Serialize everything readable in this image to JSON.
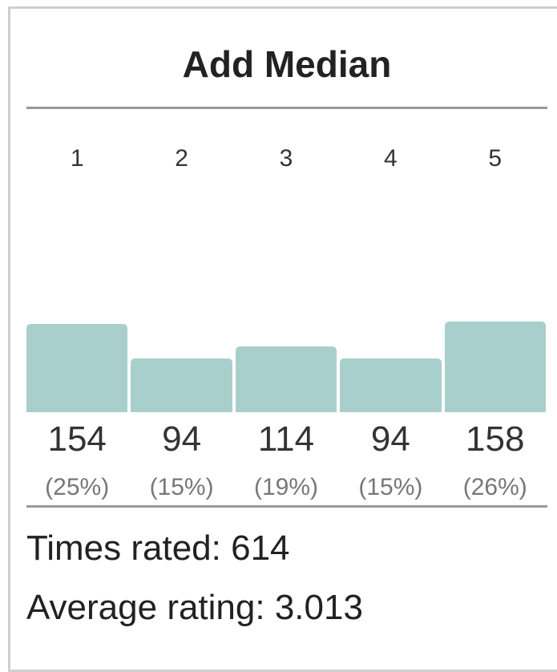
{
  "chart_data": {
    "type": "bar",
    "title": "Add Median",
    "categories": [
      "1",
      "2",
      "3",
      "4",
      "5"
    ],
    "values": [
      154,
      94,
      114,
      94,
      158
    ],
    "percent_labels": [
      "(25%)",
      "(15%)",
      "(19%)",
      "(15%)",
      "(26%)"
    ],
    "color": "#a8cfcc",
    "summary": [
      "Times rated: 614",
      "Average rating: 3.013"
    ]
  }
}
